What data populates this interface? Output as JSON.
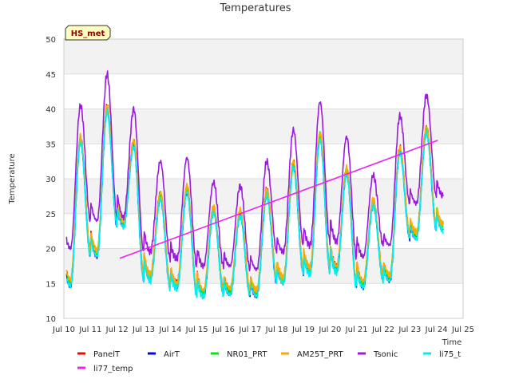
{
  "chart_data": {
    "type": "line",
    "title": "Temperatures",
    "xlabel": "Time",
    "ylabel": "Temperature",
    "badge": "HS_met",
    "xlim": [
      10,
      25
    ],
    "ylim": [
      10,
      50
    ],
    "x_ticks": [
      10,
      11,
      12,
      13,
      14,
      15,
      16,
      17,
      18,
      19,
      20,
      21,
      22,
      23,
      24,
      25
    ],
    "x_tick_labels": [
      "Jul 10",
      "Jul 11",
      "Jul 12",
      "Jul 13",
      "Jul 14",
      "Jul 15",
      "Jul 16",
      "Jul 17",
      "Jul 18",
      "Jul 19",
      "Jul 20",
      "Jul 21",
      "Jul 22",
      "Jul 23",
      "Jul 24",
      "Jul 25"
    ],
    "y_ticks": [
      10,
      15,
      20,
      25,
      30,
      35,
      40,
      45,
      50
    ],
    "grid": true,
    "legend_position": "bottom",
    "days": {
      "start": [
        10,
        11,
        12,
        13,
        14,
        15,
        16,
        17,
        18,
        19,
        20,
        21,
        22,
        23,
        24
      ],
      "air_min": [
        15.0,
        19.3,
        23.5,
        15.8,
        14.6,
        13.5,
        13.8,
        13.6,
        15.4,
        16.8,
        17.0,
        14.8,
        15.8,
        21.8,
        23.0
      ],
      "air_max": [
        35.5,
        40.0,
        35.0,
        27.5,
        28.5,
        25.5,
        25.0,
        28.0,
        32.0,
        36.0,
        31.0,
        26.5,
        34.0,
        37.0,
        37.5
      ],
      "tsonic_min": [
        20.0,
        24.0,
        24.5,
        19.5,
        18.5,
        17.5,
        17.5,
        17.0,
        19.5,
        20.5,
        21.0,
        18.8,
        20.5,
        26.5,
        27.5
      ],
      "tsonic_max": [
        40.5,
        45.0,
        40.0,
        32.5,
        33.0,
        29.5,
        29.0,
        32.5,
        37.0,
        41.0,
        36.0,
        30.5,
        39.0,
        42.0,
        42.0
      ]
    },
    "end": 24.25,
    "series": [
      {
        "name": "PanelT",
        "color": "#ff0000",
        "kind": "air",
        "offset": 0.4
      },
      {
        "name": "AirT",
        "color": "#0000ff",
        "kind": "air",
        "offset": -0.2
      },
      {
        "name": "NR01_PRT",
        "color": "#00ee00",
        "kind": "air",
        "offset": 0.2
      },
      {
        "name": "AM25T_PRT",
        "color": "#ffaa00",
        "kind": "air",
        "offset": 0.5
      },
      {
        "name": "Tsonic",
        "color": "#9a1adf",
        "kind": "tsonic",
        "offset": 0
      },
      {
        "name": "li75_t",
        "color": "#00eeee",
        "kind": "air",
        "offset": -0.4
      },
      {
        "name": "li77_temp",
        "color": "#ee22ee",
        "kind": "linear",
        "x": [
          12.1,
          24.05
        ],
        "y": [
          18.6,
          35.5
        ]
      }
    ]
  }
}
